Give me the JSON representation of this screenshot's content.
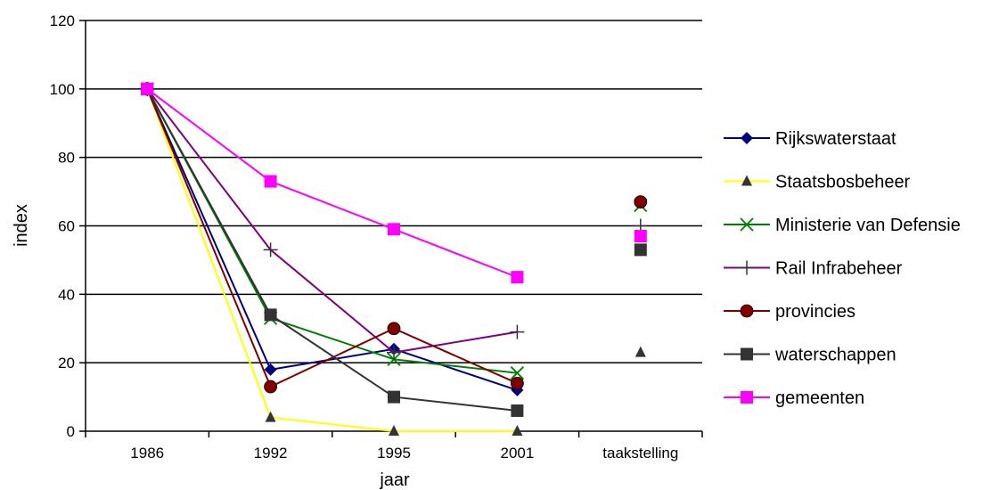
{
  "chart_data": {
    "type": "line",
    "title": "",
    "xlabel": "jaar",
    "ylabel": "index",
    "categories": [
      "1986",
      "1992",
      "1995",
      "2001",
      "taakstelling"
    ],
    "y_ticks": [
      "0",
      "20",
      "40",
      "60",
      "80",
      "100",
      "120"
    ],
    "ylim": [
      0,
      120
    ],
    "grid": "horizontal",
    "legend_position": "right",
    "series": [
      {
        "name": "Rijkswaterstaat",
        "values": [
          100,
          18,
          24,
          12,
          null
        ],
        "target": null,
        "color": "#000080",
        "marker": "diamond"
      },
      {
        "name": "Staatsbosbeheer",
        "values": [
          100,
          4,
          0,
          0,
          null
        ],
        "target": 23,
        "color": "#ffff00",
        "marker_color": "#333333",
        "marker": "triangle"
      },
      {
        "name": "Ministerie van Defensie",
        "values": [
          100,
          33,
          21,
          17,
          null
        ],
        "target": 66,
        "color": "#008000",
        "marker": "x"
      },
      {
        "name": "Rail Infrabeheer",
        "values": [
          100,
          53,
          23,
          29,
          null
        ],
        "target": 60,
        "color": "#800080",
        "marker_color": "#333333",
        "marker": "plus"
      },
      {
        "name": "provincies",
        "values": [
          100,
          13,
          30,
          14,
          null
        ],
        "target": 67,
        "color": "#800000",
        "marker": "circle"
      },
      {
        "name": "waterschappen",
        "values": [
          100,
          34,
          10,
          6,
          null
        ],
        "target": 53,
        "color": "#333333",
        "marker": "square"
      },
      {
        "name": "gemeenten",
        "values": [
          100,
          73,
          59,
          45,
          null
        ],
        "target": 57,
        "color": "#ff00ff",
        "marker": "square"
      }
    ]
  }
}
